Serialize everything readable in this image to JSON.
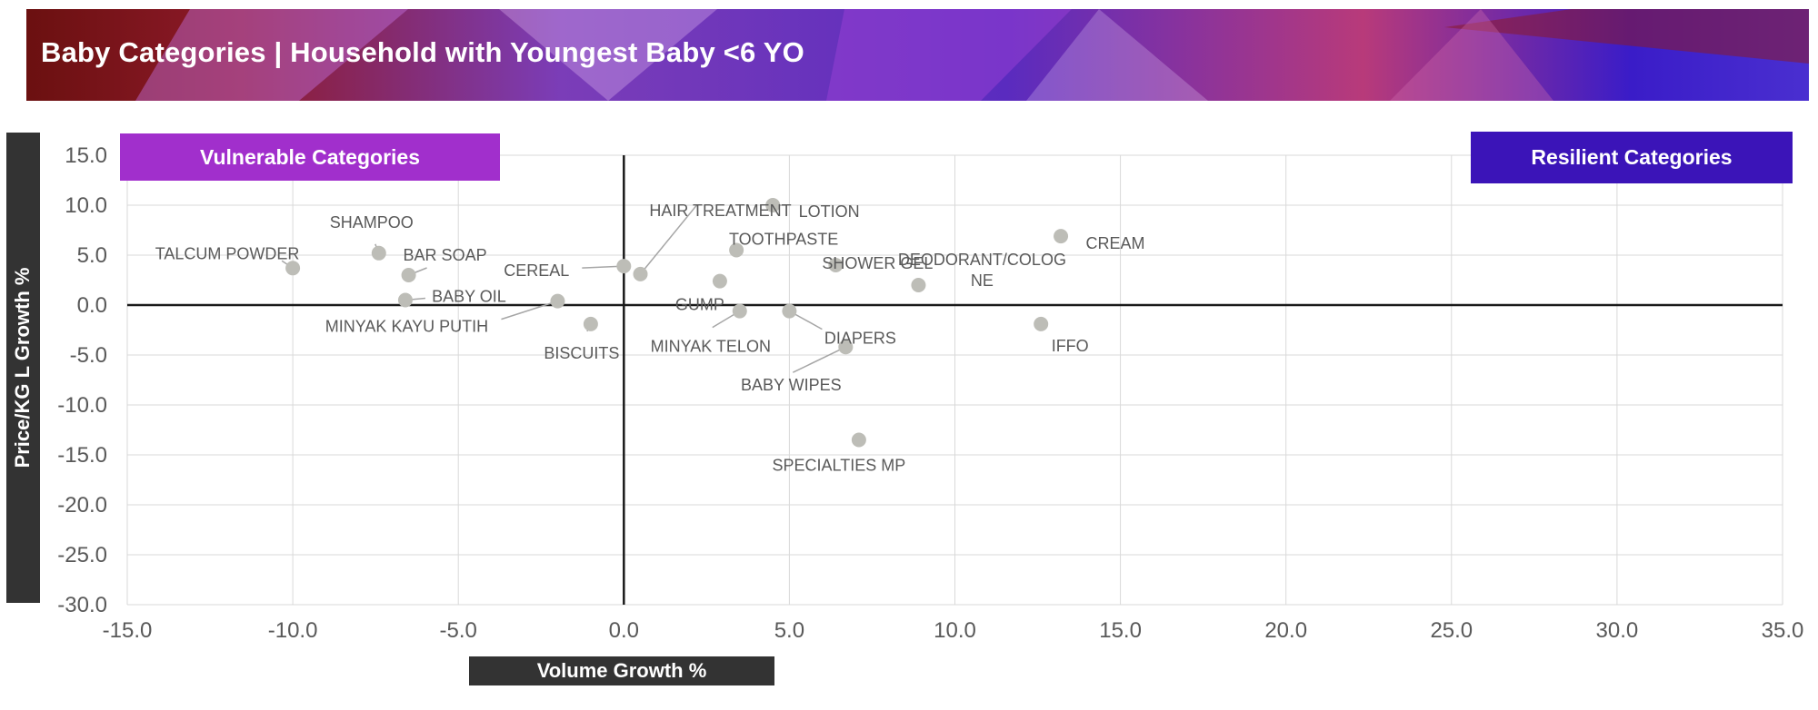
{
  "header": {
    "title": "Baby Categories | Household with Youngest Baby <6 YO"
  },
  "quadrants": {
    "vulnerable": "Vulnerable Categories",
    "resilient": "Resilient Categories"
  },
  "colors": {
    "point": "#bdbdb7",
    "vulnerable": "#a12fcc",
    "resilient": "#3b14b8",
    "axis_label_bg": "#333333",
    "grid": "#d9d9d9",
    "text": "#595959"
  },
  "chart_data": {
    "type": "scatter",
    "xlabel": "Volume Growth %",
    "ylabel": "Price/KG L Growth %",
    "xlim": [
      -15,
      35
    ],
    "ylim": [
      -30,
      15
    ],
    "x_ticks": [
      "-15.0",
      "-10.0",
      "-5.0",
      "0.0",
      "5.0",
      "10.0",
      "15.0",
      "20.0",
      "25.0",
      "30.0",
      "35.0"
    ],
    "y_ticks": [
      "15.0",
      "10.0",
      "5.0",
      "0.0",
      "-5.0",
      "-10.0",
      "-15.0",
      "-20.0",
      "-25.0",
      "-30.0"
    ],
    "grid": true,
    "points": [
      {
        "label": "TALCUM POWDER",
        "x": -10.0,
        "y": 3.7
      },
      {
        "label": "SHAMPOO",
        "x": -7.4,
        "y": 5.2
      },
      {
        "label": "BAR SOAP",
        "x": -6.5,
        "y": 3.0
      },
      {
        "label": "BABY OIL",
        "x": -6.6,
        "y": 0.5
      },
      {
        "label": "MINYAK KAYU PUTIH",
        "x": -2.0,
        "y": 0.4
      },
      {
        "label": "BISCUITS",
        "x": -1.0,
        "y": -1.9
      },
      {
        "label": "CEREAL",
        "x": 0.0,
        "y": 3.9
      },
      {
        "label": "HAIR TREATMENT",
        "x": 0.5,
        "y": 3.1
      },
      {
        "label": "LOTION",
        "x": 4.5,
        "y": 10.0
      },
      {
        "label": "TOOTHPASTE",
        "x": 3.4,
        "y": 5.5
      },
      {
        "label": "GUMP",
        "x": 2.9,
        "y": 2.4
      },
      {
        "label": "MINYAK TELON",
        "x": 3.5,
        "y": -0.6
      },
      {
        "label": "DIAPERS",
        "x": 5.0,
        "y": -0.6
      },
      {
        "label": "SHOWER GEL",
        "x": 6.4,
        "y": 4.0
      },
      {
        "label": "BABY WIPES",
        "x": 6.7,
        "y": -4.2
      },
      {
        "label": "DEODORANT/COLOGNE",
        "x": 8.9,
        "y": 2.0
      },
      {
        "label": "CREAM",
        "x": 13.2,
        "y": 6.9
      },
      {
        "label": "IFFO",
        "x": 12.6,
        "y": -1.9
      },
      {
        "label": "SPECIALTIES MP",
        "x": 7.1,
        "y": -13.5
      }
    ]
  }
}
